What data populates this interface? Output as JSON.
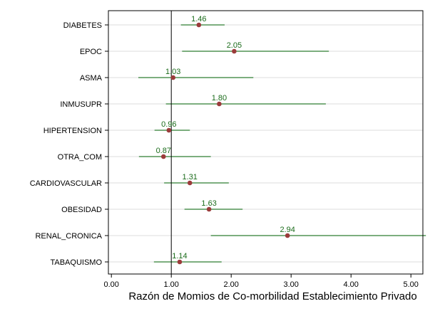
{
  "chart_data": {
    "type": "forest",
    "xlabel": "Razón de Momios de Co-morbilidad Establecimiento Privado",
    "xlim": [
      -0.05,
      5.2
    ],
    "x_ticks": [
      0,
      1,
      2,
      3,
      4,
      5
    ],
    "x_tick_labels": [
      "0.00",
      "1.00",
      "2.00",
      "3.00",
      "4.00",
      "5.00"
    ],
    "reference_line": 1,
    "grid": "horizontal",
    "colors": {
      "ci_line": "#2e7d32",
      "point": "#9b3b3b",
      "label": "#1a6b1a",
      "grid": "#dcdcdc",
      "axis": "#000000"
    },
    "rows": [
      {
        "name": "DIABETES",
        "estimate": 1.46,
        "label": "1.46",
        "ci_low": 1.16,
        "ci_high": 1.89
      },
      {
        "name": "EPOC",
        "estimate": 2.05,
        "label": "2.05",
        "ci_low": 1.18,
        "ci_high": 3.63
      },
      {
        "name": "ASMA",
        "estimate": 1.03,
        "label": "1.03",
        "ci_low": 0.45,
        "ci_high": 2.37
      },
      {
        "name": "INMUSUPR",
        "estimate": 1.8,
        "label": "1.80",
        "ci_low": 0.91,
        "ci_high": 3.58
      },
      {
        "name": "HIPERTENSION",
        "estimate": 0.96,
        "label": "0.96",
        "ci_low": 0.72,
        "ci_high": 1.31
      },
      {
        "name": "OTRA_COM",
        "estimate": 0.87,
        "label": "0.87",
        "ci_low": 0.46,
        "ci_high": 1.66
      },
      {
        "name": "CARDIOVASCULAR",
        "estimate": 1.31,
        "label": "1.31",
        "ci_low": 0.88,
        "ci_high": 1.96
      },
      {
        "name": "OBESIDAD",
        "estimate": 1.63,
        "label": "1.63",
        "ci_low": 1.22,
        "ci_high": 2.19
      },
      {
        "name": "RENAL_CRONICA",
        "estimate": 2.94,
        "label": "2.94",
        "ci_low": 1.66,
        "ci_high": 5.25
      },
      {
        "name": "TABAQUISMO",
        "estimate": 1.14,
        "label": "1.14",
        "ci_low": 0.71,
        "ci_high": 1.84
      }
    ]
  }
}
